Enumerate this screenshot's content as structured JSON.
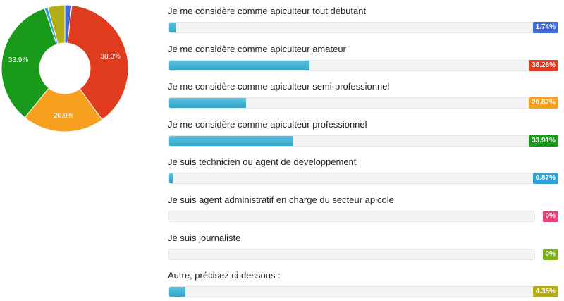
{
  "chart_data": {
    "type": "pie",
    "style": "donut",
    "slices": [
      {
        "value": 1.74,
        "color": "#3f6ad8",
        "label": ""
      },
      {
        "value": 38.26,
        "color": "#e03b1f",
        "label": "38.3%"
      },
      {
        "value": 20.87,
        "color": "#f7a020",
        "label": "20.9%"
      },
      {
        "value": 33.91,
        "color": "#1a9a1a",
        "label": "33.9%"
      },
      {
        "value": 0.87,
        "color": "#2ea2d6",
        "label": ""
      },
      {
        "value": 0,
        "color": "#e8407a",
        "label": ""
      },
      {
        "value": 0,
        "color": "#7bb21a",
        "label": ""
      },
      {
        "value": 4.35,
        "color": "#b4ac18",
        "label": ""
      }
    ]
  },
  "results": [
    {
      "label": "Je me considère comme apiculteur tout débutant",
      "percent": 1.74,
      "percent_text": "1.74%",
      "badge_color": "#3f6ad8"
    },
    {
      "label": "Je me considère comme apiculteur amateur",
      "percent": 38.26,
      "percent_text": "38.26%",
      "badge_color": "#e03b1f"
    },
    {
      "label": "Je me considère comme apiculteur semi-professionnel",
      "percent": 20.87,
      "percent_text": "20.87%",
      "badge_color": "#f7a020"
    },
    {
      "label": "Je me considère comme apiculteur professionnel",
      "percent": 33.91,
      "percent_text": "33.91%",
      "badge_color": "#1a9a1a"
    },
    {
      "label": "Je suis technicien ou agent de développement",
      "percent": 0.87,
      "percent_text": "0.87%",
      "badge_color": "#2ea2d6"
    },
    {
      "label": "Je suis agent administratif en charge du secteur apicole",
      "percent": 0,
      "percent_text": "0%",
      "badge_color": "#e8407a"
    },
    {
      "label": "Je suis journaliste",
      "percent": 0,
      "percent_text": "0%",
      "badge_color": "#7bb21a"
    },
    {
      "label": "Autre, précisez ci-dessous :",
      "percent": 4.35,
      "percent_text": "4.35%",
      "badge_color": "#b4ac18"
    }
  ]
}
